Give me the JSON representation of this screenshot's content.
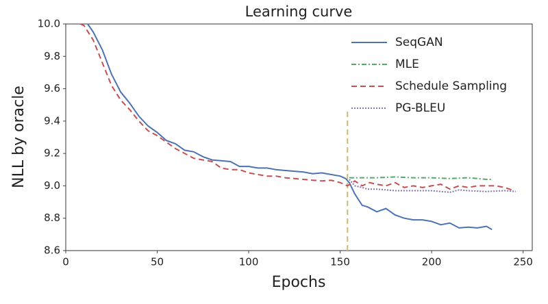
{
  "chart_data": {
    "type": "line",
    "title": "Learning curve",
    "x_label": "Epochs",
    "y_label": "NLL by oracle",
    "xlim": [
      0,
      255
    ],
    "ylim": [
      8.6,
      10.0
    ],
    "xticks": [
      0,
      50,
      100,
      150,
      200,
      250
    ],
    "yticks": [
      8.6,
      8.8,
      {
        "value": 9.0,
        "label": "9.0"
      },
      9.2,
      9.4,
      9.6,
      9.8,
      {
        "value": 10.0,
        "label": "10.0"
      }
    ],
    "legend": "upper right",
    "vline": {
      "x": 154,
      "top": 9.47,
      "color": "#ccb974"
    },
    "series": [
      {
        "name": "SeqGAN",
        "color": "#4c72b0",
        "style": "solid",
        "x": [
          12,
          15,
          20,
          25,
          30,
          35,
          40,
          45,
          50,
          55,
          60,
          65,
          70,
          75,
          80,
          85,
          90,
          95,
          100,
          105,
          110,
          115,
          120,
          125,
          130,
          135,
          140,
          145,
          150,
          153,
          155,
          158,
          162,
          165,
          170,
          175,
          180,
          185,
          190,
          195,
          200,
          205,
          210,
          215,
          220,
          225,
          230,
          233
        ],
        "values": [
          10.0,
          9.95,
          9.84,
          9.69,
          9.58,
          9.51,
          9.43,
          9.37,
          9.33,
          9.28,
          9.26,
          9.22,
          9.21,
          9.18,
          9.16,
          9.155,
          9.15,
          9.12,
          9.12,
          9.11,
          9.11,
          9.1,
          9.095,
          9.09,
          9.085,
          9.075,
          9.08,
          9.07,
          9.06,
          9.045,
          9.02,
          8.95,
          8.88,
          8.87,
          8.84,
          8.86,
          8.82,
          8.8,
          8.79,
          8.79,
          8.78,
          8.76,
          8.77,
          8.74,
          8.745,
          8.74,
          8.75,
          8.73
        ]
      },
      {
        "name": "MLE",
        "color": "#55a868",
        "style": "dashdot",
        "x": [
          155,
          160,
          170,
          180,
          190,
          200,
          210,
          220,
          230,
          233
        ],
        "values": [
          9.05,
          9.05,
          9.05,
          9.055,
          9.05,
          9.05,
          9.045,
          9.05,
          9.04,
          9.04
        ]
      },
      {
        "name": "Schedule Sampling",
        "color": "#c44e52",
        "style": "dashed",
        "x": [
          8,
          10,
          15,
          20,
          25,
          30,
          35,
          40,
          45,
          50,
          55,
          60,
          65,
          70,
          75,
          80,
          85,
          90,
          95,
          100,
          105,
          110,
          115,
          120,
          125,
          130,
          135,
          140,
          145,
          150,
          154,
          158,
          162,
          166,
          170,
          175,
          180,
          185,
          190,
          195,
          200,
          205,
          210,
          215,
          220,
          225,
          230,
          235,
          240,
          245
        ],
        "values": [
          10.0,
          9.99,
          9.9,
          9.76,
          9.62,
          9.53,
          9.47,
          9.4,
          9.34,
          9.31,
          9.27,
          9.23,
          9.2,
          9.17,
          9.16,
          9.15,
          9.11,
          9.1,
          9.1,
          9.08,
          9.07,
          9.06,
          9.06,
          9.05,
          9.045,
          9.04,
          9.035,
          9.03,
          9.035,
          9.02,
          9.0,
          9.03,
          9.0,
          9.02,
          9.01,
          9.0,
          9.02,
          8.99,
          9.0,
          8.99,
          9.0,
          9.01,
          8.98,
          9.0,
          8.99,
          9.0,
          9.0,
          9.0,
          8.99,
          8.97
        ]
      },
      {
        "name": "PG-BLEU",
        "color": "#8172b2",
        "style": "dotted",
        "x": [
          155,
          158,
          162,
          165,
          170,
          180,
          190,
          200,
          210,
          215,
          220,
          230,
          240,
          246
        ],
        "values": [
          9.04,
          9.0,
          8.99,
          8.98,
          8.98,
          8.97,
          8.97,
          8.97,
          8.96,
          8.975,
          8.97,
          8.965,
          8.97,
          8.965
        ]
      }
    ]
  }
}
